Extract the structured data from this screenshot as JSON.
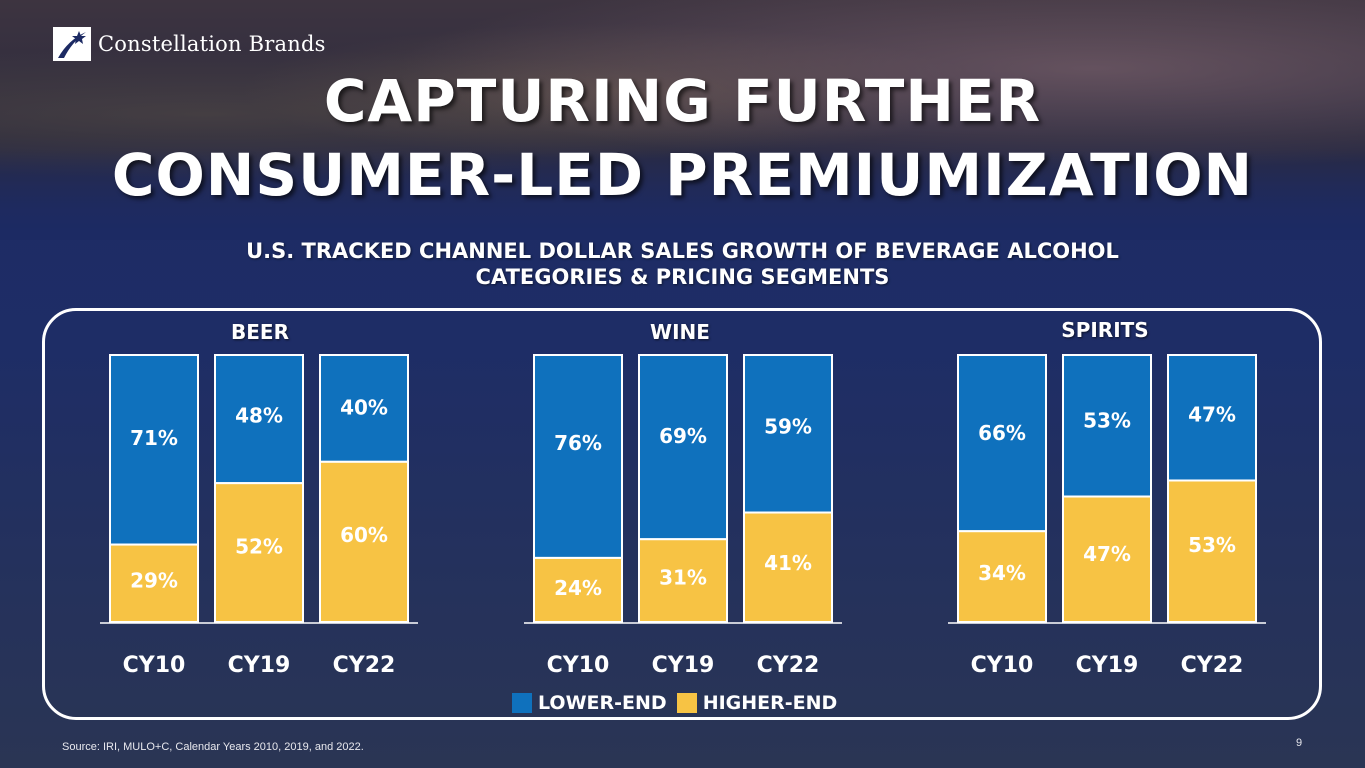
{
  "brand": {
    "name": "Constellation Brands"
  },
  "title": {
    "line1": "CAPTURING FURTHER",
    "line2": "CONSUMER-LED PREMIUMIZATION"
  },
  "subtitle": {
    "line1": "U.S. TRACKED CHANNEL DOLLAR SALES GROWTH OF BEVERAGE ALCOHOL",
    "line2": "CATEGORIES & PRICING SEGMENTS"
  },
  "colors": {
    "lower": "#0f71bd",
    "higher": "#f7c344"
  },
  "chart_data": {
    "type": "bar",
    "stacked": true,
    "normalized": true,
    "ylim": [
      0,
      100
    ],
    "categories": [
      "CY10",
      "CY19",
      "CY22"
    ],
    "groups": [
      {
        "name": "BEER",
        "lower": [
          71,
          48,
          40
        ],
        "higher": [
          29,
          52,
          60
        ]
      },
      {
        "name": "WINE",
        "lower": [
          76,
          69,
          59
        ],
        "higher": [
          24,
          31,
          41
        ]
      },
      {
        "name": "SPIRITS",
        "lower": [
          66,
          53,
          47
        ],
        "higher": [
          34,
          47,
          53
        ]
      }
    ],
    "legend": [
      "LOWER-END",
      "HIGHER-END"
    ]
  },
  "footer": {
    "source": "Source: IRI, MULO+C, Calendar Years 2010, 2019, and 2022.",
    "page": "9"
  }
}
